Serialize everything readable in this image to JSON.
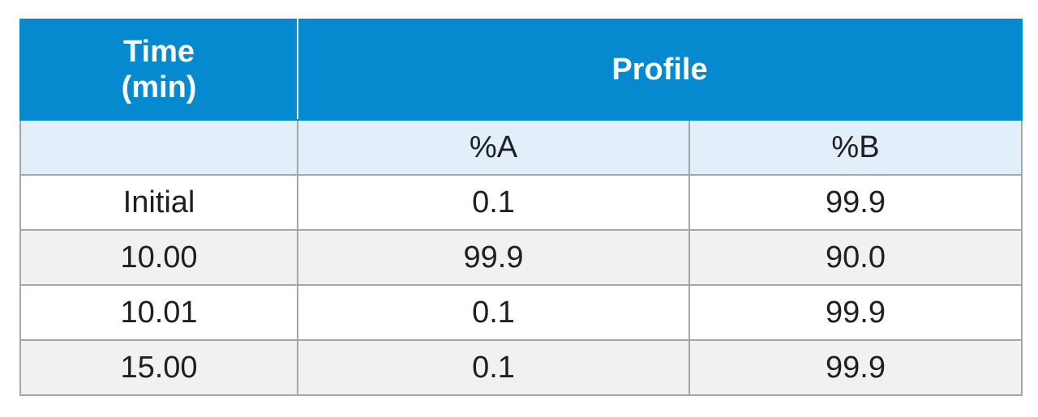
{
  "table": {
    "header": {
      "time_label": "Time\n(min)",
      "time_line1": "Time",
      "time_line2": "(min)",
      "profile_label": "Profile"
    },
    "subheader": {
      "col_a": "%A",
      "col_b": "%B"
    },
    "rows": [
      {
        "time": "Initial",
        "a": "0.1",
        "b": "99.9"
      },
      {
        "time": "10.00",
        "a": "99.9",
        "b": "90.0"
      },
      {
        "time": "10.01",
        "a": "0.1",
        "b": "99.9"
      },
      {
        "time": "15.00",
        "a": "0.1",
        "b": "99.9"
      }
    ],
    "colors": {
      "header_bg": "#0589cf",
      "subheader_bg": "#e2eefa",
      "alt_row_bg": "#f1f1f4",
      "border": "#a6a6a6"
    }
  }
}
